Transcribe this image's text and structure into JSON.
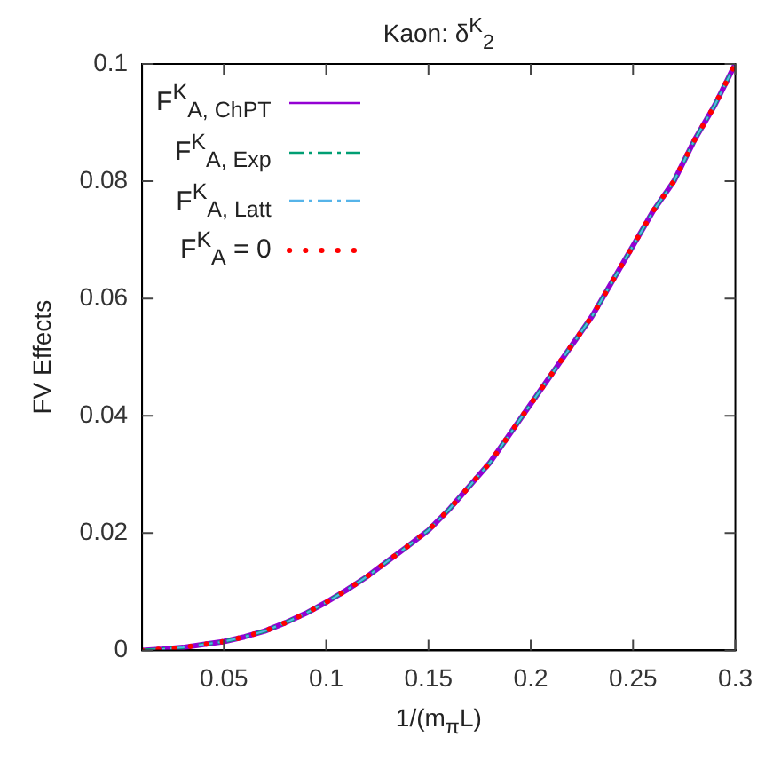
{
  "chart_data": {
    "type": "line",
    "title": "Kaon: δ$^{K}$$_{2}$",
    "xlabel": "1/(m$_{π}$L)",
    "ylabel": "FV Effects",
    "x": [
      0.01,
      0.02,
      0.03,
      0.04,
      0.05,
      0.06,
      0.07,
      0.08,
      0.09,
      0.1,
      0.11,
      0.12,
      0.13,
      0.14,
      0.15,
      0.16,
      0.17,
      0.18,
      0.19,
      0.2,
      0.21,
      0.22,
      0.23,
      0.24,
      0.25,
      0.26,
      0.27,
      0.28,
      0.29,
      0.3
    ],
    "series": [
      {
        "name": "F$^{K}$$_{A, ChPT}$",
        "color": "#9400d3",
        "line_style": "solid",
        "values": [
          0,
          0.0002,
          0.0005,
          0.001,
          0.0015,
          0.0023,
          0.0033,
          0.0047,
          0.0063,
          0.0082,
          0.0103,
          0.0126,
          0.0152,
          0.0178,
          0.0205,
          0.024,
          0.028,
          0.032,
          0.037,
          0.042,
          0.047,
          0.052,
          0.057,
          0.063,
          0.069,
          0.075,
          0.08,
          0.087,
          0.093,
          0.1
        ]
      },
      {
        "name": "F$^{K}$$_{A, Exp}$",
        "color": "#009e73",
        "line_style": "dashed",
        "values": [
          0,
          0.0002,
          0.0005,
          0.001,
          0.0015,
          0.0023,
          0.0033,
          0.0047,
          0.0063,
          0.0082,
          0.0103,
          0.0126,
          0.0152,
          0.0178,
          0.0205,
          0.024,
          0.028,
          0.032,
          0.037,
          0.042,
          0.047,
          0.052,
          0.057,
          0.063,
          0.069,
          0.075,
          0.08,
          0.087,
          0.093,
          0.1
        ]
      },
      {
        "name": "F$^{K}$$_{A, Latt}$",
        "color": "#56b4e9",
        "line_style": "dashed",
        "values": [
          0,
          0.0002,
          0.0005,
          0.001,
          0.0015,
          0.0023,
          0.0033,
          0.0047,
          0.0063,
          0.0082,
          0.0103,
          0.0126,
          0.0152,
          0.0178,
          0.0205,
          0.024,
          0.028,
          0.032,
          0.037,
          0.042,
          0.047,
          0.052,
          0.057,
          0.063,
          0.069,
          0.075,
          0.08,
          0.087,
          0.093,
          0.1
        ]
      },
      {
        "name": "F$^{K}$$_{A}$ = 0",
        "color": "#ff0000",
        "line_style": "dotted",
        "values": [
          0,
          0.0002,
          0.0005,
          0.001,
          0.0015,
          0.0023,
          0.0033,
          0.0047,
          0.0063,
          0.0082,
          0.0103,
          0.0126,
          0.0152,
          0.0178,
          0.0205,
          0.024,
          0.028,
          0.032,
          0.037,
          0.042,
          0.047,
          0.052,
          0.057,
          0.063,
          0.069,
          0.075,
          0.08,
          0.087,
          0.093,
          0.1
        ]
      }
    ],
    "xlim": [
      0.01,
      0.3
    ],
    "xticks": [
      0.05,
      0.1,
      0.15,
      0.2,
      0.25,
      0.3
    ],
    "ylim": [
      0,
      0.1
    ],
    "yticks": [
      0,
      0.02,
      0.04,
      0.06,
      0.08,
      0.1
    ],
    "grid": false,
    "legend": "top left",
    "marker": "none"
  }
}
